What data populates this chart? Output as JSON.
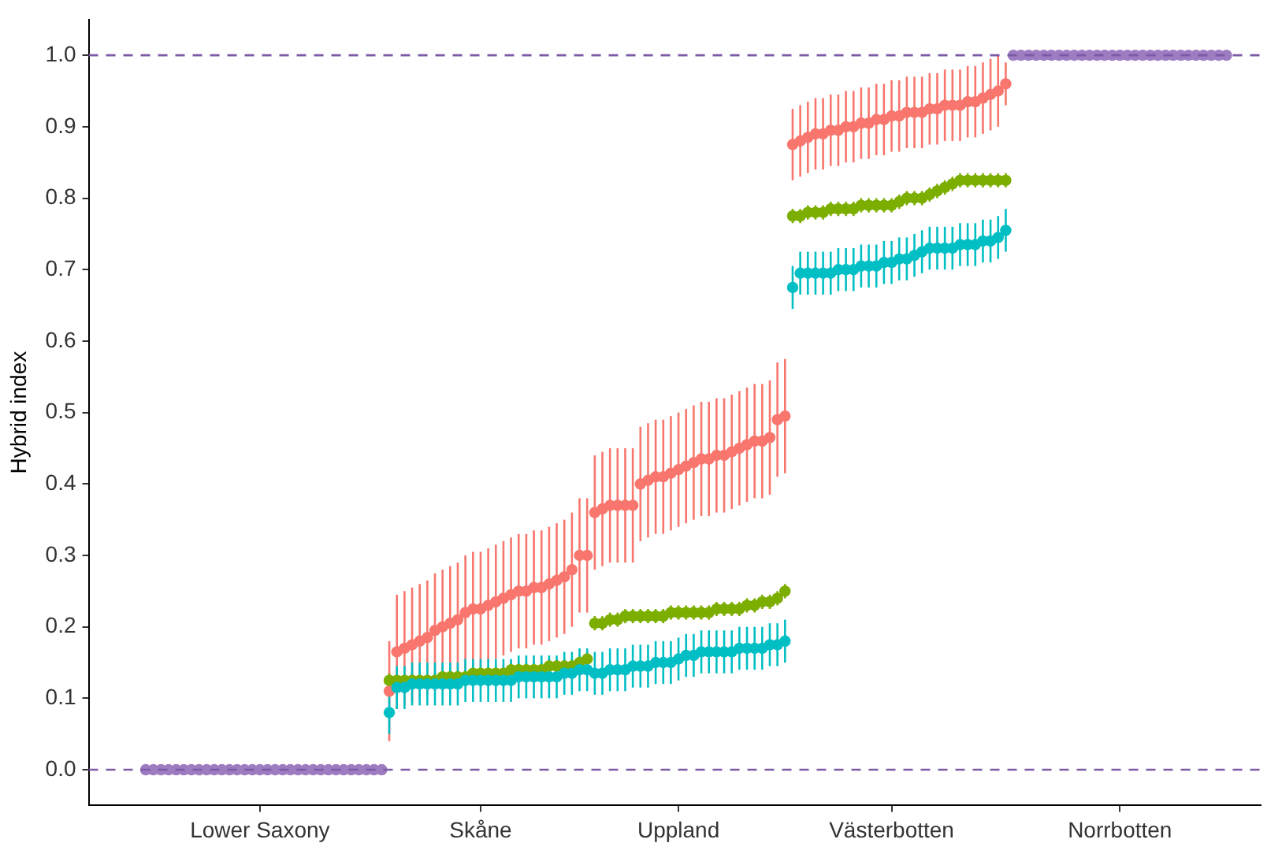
{
  "chart_data": {
    "type": "scatter",
    "ylabel": "Hybrid index",
    "ylim": [
      -0.05,
      1.05
    ],
    "categories": [
      null,
      null,
      null,
      null,
      null,
      null,
      null,
      null,
      null,
      null,
      null,
      null,
      null,
      null,
      null,
      null,
      null,
      null,
      null,
      null,
      null,
      null,
      "Lower Saxony",
      null,
      null,
      null,
      null,
      null,
      null,
      null,
      null,
      null,
      null,
      null,
      null,
      null,
      null,
      null,
      null,
      null,
      null,
      null,
      null,
      null,
      null,
      null,
      null,
      null,
      null,
      null,
      null,
      "Skåne",
      null,
      null,
      null,
      null,
      null,
      null,
      null,
      null,
      null,
      null,
      null,
      null,
      null,
      null,
      null,
      null,
      null,
      null,
      null,
      null,
      null,
      null,
      null,
      null,
      null,
      "Uppland",
      null,
      null,
      null,
      null,
      null,
      null,
      null,
      null,
      null,
      null,
      null,
      null,
      null,
      null,
      null,
      null,
      null,
      null,
      null,
      null,
      null,
      null,
      null,
      null,
      null,
      null,
      null,
      "Västerbotten",
      null,
      null,
      null,
      null,
      null,
      null,
      null,
      null,
      null,
      null,
      null,
      null,
      null,
      null,
      null,
      null,
      null,
      null,
      null,
      null,
      null,
      null,
      null,
      null,
      null,
      null,
      null,
      null,
      null,
      "Norrbotten",
      null,
      null,
      null,
      null,
      null,
      null,
      null,
      null,
      null,
      null,
      null,
      null,
      null,
      null,
      null,
      null,
      null,
      null
    ],
    "yticks": [
      {
        "value": 0,
        "label": "0.0"
      },
      {
        "value": 0.1,
        "label": "0.1"
      },
      {
        "value": 0.2,
        "label": "0.2"
      },
      {
        "value": 0.3,
        "label": "0.3"
      },
      {
        "value": 0.4,
        "label": "0.4"
      },
      {
        "value": 0.5,
        "label": "0.5"
      },
      {
        "value": 0.6,
        "label": "0.6"
      },
      {
        "value": 0.7,
        "label": "0.7"
      },
      {
        "value": 0.8,
        "label": "0.8"
      },
      {
        "value": 0.9,
        "label": "0.9"
      },
      {
        "value": 1,
        "label": "1.0"
      }
    ],
    "grid": false,
    "legend": false,
    "marker": "circle",
    "ref_lines": [
      {
        "axis": "y",
        "value": 0,
        "color": "#7b5aa6",
        "line_style": "dashed"
      },
      {
        "axis": "y",
        "value": 1,
        "color": "#7b5aa6",
        "line_style": "dashed"
      }
    ],
    "series": [
      {
        "color": "#f8766d",
        "values": [
          null,
          null,
          null,
          null,
          null,
          null,
          null,
          null,
          null,
          null,
          null,
          null,
          null,
          null,
          null,
          null,
          null,
          null,
          null,
          null,
          null,
          null,
          null,
          null,
          null,
          null,
          null,
          null,
          null,
          null,
          null,
          null,
          null,
          null,
          null,
          null,
          null,
          null,
          null,
          0.11,
          0.165,
          0.17,
          0.175,
          0.18,
          0.185,
          0.195,
          0.2,
          0.205,
          0.21,
          0.22,
          0.225,
          0.225,
          0.23,
          0.235,
          0.24,
          0.245,
          0.25,
          0.25,
          0.255,
          0.255,
          0.26,
          0.265,
          0.27,
          0.28,
          0.3,
          0.3,
          0.36,
          0.365,
          0.37,
          0.37,
          0.37,
          0.37,
          0.4,
          0.405,
          0.41,
          0.41,
          0.415,
          0.42,
          0.425,
          0.43,
          0.435,
          0.435,
          0.44,
          0.44,
          0.445,
          0.45,
          0.455,
          0.46,
          0.46,
          0.465,
          0.49,
          0.495,
          0.875,
          0.88,
          0.885,
          0.89,
          0.89,
          0.895,
          0.895,
          0.9,
          0.9,
          0.905,
          0.905,
          0.91,
          0.91,
          0.915,
          0.915,
          0.92,
          0.92,
          0.92,
          0.925,
          0.925,
          0.93,
          0.93,
          0.93,
          0.935,
          0.935,
          0.94,
          0.945,
          0.95,
          0.96,
          null,
          null,
          null,
          null,
          null,
          null,
          null,
          null,
          null,
          null,
          null,
          null,
          null,
          null,
          null,
          null,
          null,
          null,
          null,
          null,
          null,
          null,
          null,
          null,
          null,
          null,
          null,
          null,
          null,
          null,
          null,
          null,
          null
        ],
        "errors": [
          null,
          null,
          null,
          null,
          null,
          null,
          null,
          null,
          null,
          null,
          null,
          null,
          null,
          null,
          null,
          null,
          null,
          null,
          null,
          null,
          null,
          null,
          null,
          null,
          null,
          null,
          null,
          null,
          null,
          null,
          null,
          null,
          null,
          null,
          null,
          null,
          null,
          null,
          null,
          0.07,
          0.08,
          0.08,
          0.08,
          0.08,
          0.08,
          0.08,
          0.08,
          0.08,
          0.08,
          0.08,
          0.08,
          0.08,
          0.08,
          0.08,
          0.08,
          0.08,
          0.08,
          0.08,
          0.08,
          0.08,
          0.08,
          0.08,
          0.08,
          0.08,
          0.08,
          0.08,
          0.08,
          0.08,
          0.08,
          0.08,
          0.08,
          0.08,
          0.08,
          0.08,
          0.08,
          0.08,
          0.08,
          0.08,
          0.08,
          0.08,
          0.08,
          0.08,
          0.08,
          0.08,
          0.08,
          0.08,
          0.08,
          0.08,
          0.08,
          0.08,
          0.08,
          0.08,
          0.05,
          0.05,
          0.05,
          0.05,
          0.05,
          0.05,
          0.05,
          0.05,
          0.05,
          0.05,
          0.05,
          0.05,
          0.05,
          0.05,
          0.05,
          0.05,
          0.05,
          0.05,
          0.05,
          0.05,
          0.05,
          0.05,
          0.05,
          0.05,
          0.05,
          0.05,
          0.05,
          0.05,
          0.03,
          null,
          null,
          null,
          null,
          null,
          null,
          null,
          null,
          null,
          null,
          null,
          null,
          null,
          null,
          null,
          null,
          null,
          null,
          null,
          null,
          null,
          null,
          null,
          null,
          null,
          null,
          null,
          null,
          null,
          null,
          null,
          null,
          null
        ]
      },
      {
        "color": "#7cae00",
        "values": [
          null,
          null,
          null,
          null,
          null,
          null,
          null,
          null,
          null,
          null,
          null,
          null,
          null,
          null,
          null,
          null,
          null,
          null,
          null,
          null,
          null,
          null,
          null,
          null,
          null,
          null,
          null,
          null,
          null,
          null,
          null,
          null,
          null,
          null,
          null,
          null,
          null,
          null,
          null,
          0.125,
          0.125,
          0.125,
          0.125,
          0.125,
          0.125,
          0.125,
          0.13,
          0.13,
          0.13,
          0.13,
          0.135,
          0.135,
          0.135,
          0.135,
          0.135,
          0.14,
          0.14,
          0.14,
          0.14,
          0.14,
          0.145,
          0.145,
          0.145,
          0.145,
          0.15,
          0.155,
          0.205,
          0.205,
          0.21,
          0.21,
          0.215,
          0.215,
          0.215,
          0.215,
          0.215,
          0.215,
          0.22,
          0.22,
          0.22,
          0.22,
          0.22,
          0.22,
          0.225,
          0.225,
          0.225,
          0.225,
          0.23,
          0.23,
          0.235,
          0.235,
          0.24,
          0.25,
          0.775,
          0.775,
          0.78,
          0.78,
          0.78,
          0.785,
          0.785,
          0.785,
          0.785,
          0.79,
          0.79,
          0.79,
          0.79,
          0.79,
          0.795,
          0.8,
          0.8,
          0.8,
          0.805,
          0.81,
          0.815,
          0.82,
          0.825,
          0.825,
          0.825,
          0.825,
          0.825,
          0.825,
          0.825,
          null,
          null,
          null,
          null,
          null,
          null,
          null,
          null,
          null,
          null,
          null,
          null,
          null,
          null,
          null,
          null,
          null,
          null,
          null,
          null,
          null,
          null,
          null,
          null,
          null,
          null,
          null,
          null,
          null,
          null,
          null,
          null,
          null
        ],
        "errors": [
          null,
          null,
          null,
          null,
          null,
          null,
          null,
          null,
          null,
          null,
          null,
          null,
          null,
          null,
          null,
          null,
          null,
          null,
          null,
          null,
          null,
          null,
          null,
          null,
          null,
          null,
          null,
          null,
          null,
          null,
          null,
          null,
          null,
          null,
          null,
          null,
          null,
          null,
          null,
          0.01,
          0.01,
          0.01,
          0.01,
          0.01,
          0.01,
          0.01,
          0.01,
          0.01,
          0.01,
          0.01,
          0.01,
          0.01,
          0.01,
          0.01,
          0.01,
          0.01,
          0.01,
          0.01,
          0.01,
          0.01,
          0.01,
          0.01,
          0.01,
          0.01,
          0.01,
          0.01,
          0.01,
          0.01,
          0.01,
          0.01,
          0.01,
          0.01,
          0.01,
          0.01,
          0.01,
          0.01,
          0.01,
          0.01,
          0.01,
          0.01,
          0.01,
          0.01,
          0.01,
          0.01,
          0.01,
          0.01,
          0.01,
          0.01,
          0.01,
          0.01,
          0.01,
          0.01,
          0.01,
          0.01,
          0.01,
          0.01,
          0.01,
          0.01,
          0.01,
          0.01,
          0.01,
          0.01,
          0.01,
          0.01,
          0.01,
          0.01,
          0.01,
          0.01,
          0.01,
          0.01,
          0.01,
          0.01,
          0.01,
          0.01,
          0.01,
          0.01,
          0.01,
          0.01,
          0.01,
          0.01,
          0.01,
          null,
          null,
          null,
          null,
          null,
          null,
          null,
          null,
          null,
          null,
          null,
          null,
          null,
          null,
          null,
          null,
          null,
          null,
          null,
          null,
          null,
          null,
          null,
          null,
          null,
          null,
          null,
          null,
          null,
          null,
          null,
          null,
          null
        ]
      },
      {
        "color": "#00bfc4",
        "values": [
          null,
          null,
          null,
          null,
          null,
          null,
          null,
          null,
          null,
          null,
          null,
          null,
          null,
          null,
          null,
          null,
          null,
          null,
          null,
          null,
          null,
          null,
          null,
          null,
          null,
          null,
          null,
          null,
          null,
          null,
          null,
          null,
          null,
          null,
          null,
          null,
          null,
          null,
          null,
          0.08,
          0.115,
          0.115,
          0.12,
          0.12,
          0.12,
          0.12,
          0.12,
          0.12,
          0.12,
          0.125,
          0.125,
          0.125,
          0.125,
          0.125,
          0.125,
          0.125,
          0.13,
          0.13,
          0.13,
          0.13,
          0.13,
          0.13,
          0.135,
          0.135,
          0.14,
          0.14,
          0.135,
          0.135,
          0.14,
          0.14,
          0.14,
          0.145,
          0.145,
          0.145,
          0.15,
          0.15,
          0.15,
          0.155,
          0.16,
          0.16,
          0.165,
          0.165,
          0.165,
          0.165,
          0.165,
          0.17,
          0.17,
          0.17,
          0.17,
          0.175,
          0.175,
          0.18,
          0.675,
          0.695,
          0.695,
          0.695,
          0.695,
          0.695,
          0.7,
          0.7,
          0.7,
          0.705,
          0.705,
          0.705,
          0.71,
          0.71,
          0.715,
          0.715,
          0.72,
          0.725,
          0.73,
          0.73,
          0.73,
          0.73,
          0.735,
          0.735,
          0.735,
          0.74,
          0.74,
          0.745,
          0.755,
          null,
          null,
          null,
          null,
          null,
          null,
          null,
          null,
          null,
          null,
          null,
          null,
          null,
          null,
          null,
          null,
          null,
          null,
          null,
          null,
          null,
          null,
          null,
          null,
          null,
          null,
          null,
          null,
          null,
          null,
          null,
          null,
          null
        ],
        "errors": [
          null,
          null,
          null,
          null,
          null,
          null,
          null,
          null,
          null,
          null,
          null,
          null,
          null,
          null,
          null,
          null,
          null,
          null,
          null,
          null,
          null,
          null,
          null,
          null,
          null,
          null,
          null,
          null,
          null,
          null,
          null,
          null,
          null,
          null,
          null,
          null,
          null,
          null,
          null,
          0.03,
          0.03,
          0.03,
          0.03,
          0.03,
          0.03,
          0.03,
          0.03,
          0.03,
          0.03,
          0.03,
          0.03,
          0.03,
          0.03,
          0.03,
          0.03,
          0.03,
          0.03,
          0.03,
          0.03,
          0.03,
          0.03,
          0.03,
          0.03,
          0.03,
          0.03,
          0.03,
          0.03,
          0.03,
          0.03,
          0.03,
          0.03,
          0.03,
          0.03,
          0.03,
          0.03,
          0.03,
          0.03,
          0.03,
          0.03,
          0.03,
          0.03,
          0.03,
          0.03,
          0.03,
          0.03,
          0.03,
          0.03,
          0.03,
          0.03,
          0.03,
          0.03,
          0.03,
          0.03,
          0.03,
          0.03,
          0.03,
          0.03,
          0.03,
          0.03,
          0.03,
          0.03,
          0.03,
          0.03,
          0.03,
          0.03,
          0.03,
          0.03,
          0.03,
          0.03,
          0.03,
          0.03,
          0.03,
          0.03,
          0.03,
          0.03,
          0.03,
          0.03,
          0.03,
          0.03,
          0.03,
          0.03,
          null,
          null,
          null,
          null,
          null,
          null,
          null,
          null,
          null,
          null,
          null,
          null,
          null,
          null,
          null,
          null,
          null,
          null,
          null,
          null,
          null,
          null,
          null,
          null,
          null,
          null,
          null,
          null,
          null,
          null,
          null,
          null,
          null
        ]
      },
      {
        "color": "#9e7cc1",
        "values": [
          null,
          null,
          null,
          null,
          null,
          null,
          null,
          0,
          0,
          0,
          0,
          0,
          0,
          0,
          0,
          0,
          0,
          0,
          0,
          0,
          0,
          0,
          0,
          0,
          0,
          0,
          0,
          0,
          0,
          0,
          0,
          0,
          0,
          0,
          0,
          0,
          0,
          0,
          0,
          null,
          null,
          null,
          null,
          null,
          null,
          null,
          null,
          null,
          null,
          null,
          null,
          null,
          null,
          null,
          null,
          null,
          null,
          null,
          null,
          null,
          null,
          null,
          null,
          null,
          null,
          null,
          null,
          null,
          null,
          null,
          null,
          null,
          null,
          null,
          null,
          null,
          null,
          null,
          null,
          null,
          null,
          null,
          null,
          null,
          null,
          null,
          null,
          null,
          null,
          null,
          null,
          null,
          null,
          null,
          null,
          null,
          null,
          null,
          null,
          null,
          null,
          null,
          null,
          null,
          null,
          null,
          null,
          null,
          null,
          null,
          null,
          null,
          null,
          null,
          null,
          null,
          null,
          null,
          null,
          null,
          null,
          1,
          1,
          1,
          1,
          1,
          1,
          1,
          1,
          1,
          1,
          1,
          1,
          1,
          1,
          1,
          1,
          1,
          1,
          1,
          1,
          1,
          1,
          1,
          1,
          1,
          1,
          1,
          1,
          1,
          null,
          null,
          null,
          null
        ]
      }
    ]
  }
}
